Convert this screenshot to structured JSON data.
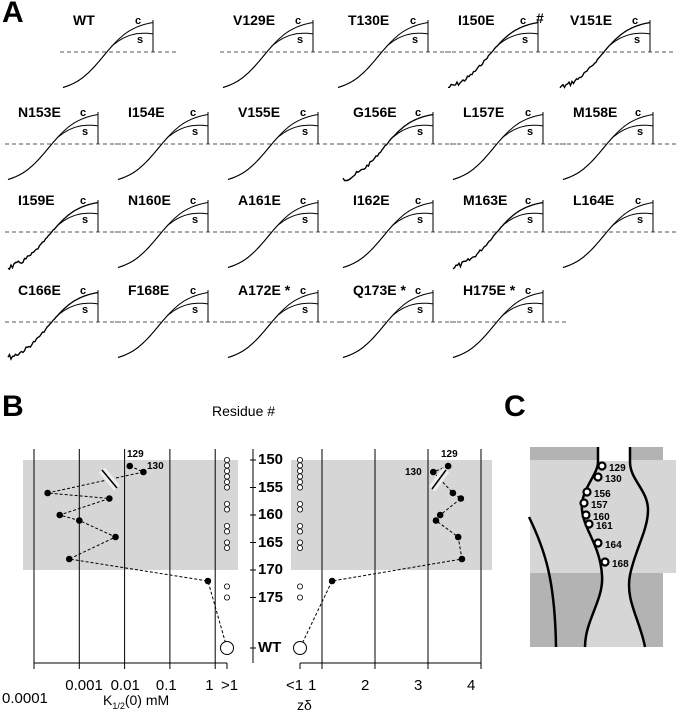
{
  "panel_a": {
    "letter": "A",
    "curve_labels": {
      "c": "c",
      "s": "s"
    },
    "traces": [
      {
        "label": "WT",
        "noisy": false,
        "marker": ""
      },
      {
        "label": "V129E",
        "noisy": false,
        "marker": ""
      },
      {
        "label": "T130E",
        "noisy": false,
        "marker": ""
      },
      {
        "label": "I150E",
        "noisy": true,
        "marker": "#"
      },
      {
        "label": "V151E",
        "noisy": true,
        "marker": ""
      },
      {
        "label": "N153E",
        "noisy": false,
        "marker": ""
      },
      {
        "label": "I154E",
        "noisy": false,
        "marker": ""
      },
      {
        "label": "V155E",
        "noisy": false,
        "marker": ""
      },
      {
        "label": "G156E",
        "noisy": true,
        "marker": ""
      },
      {
        "label": "L157E",
        "noisy": false,
        "marker": ""
      },
      {
        "label": "M158E",
        "noisy": false,
        "marker": ""
      },
      {
        "label": "I159E",
        "noisy": true,
        "marker": ""
      },
      {
        "label": "N160E",
        "noisy": false,
        "marker": ""
      },
      {
        "label": "A161E",
        "noisy": false,
        "marker": ""
      },
      {
        "label": "I162E",
        "noisy": false,
        "marker": ""
      },
      {
        "label": "M163E",
        "noisy": true,
        "marker": ""
      },
      {
        "label": "L164E",
        "noisy": false,
        "marker": ""
      },
      {
        "label": "C166E",
        "noisy": true,
        "marker": ""
      },
      {
        "label": "F168E",
        "noisy": false,
        "marker": ""
      },
      {
        "label": "A172E *",
        "noisy": false,
        "marker": ""
      },
      {
        "label": "Q173E *",
        "noisy": false,
        "marker": ""
      },
      {
        "label": "H175E *",
        "noisy": false,
        "marker": ""
      }
    ]
  },
  "panel_b": {
    "letter": "B",
    "residue_axis_title": "Residue #",
    "residue_ticks": [
      "150",
      "155",
      "160",
      "165",
      "170",
      "175",
      "WT"
    ],
    "point_labels": [
      "129",
      "130"
    ]
  },
  "panel_c": {
    "letter": "C",
    "sites": [
      "129",
      "130",
      "156",
      "157",
      "160",
      "161",
      "164",
      "168"
    ]
  },
  "chart_data": [
    {
      "type": "scatter",
      "xlabel": "K1/2(0)  mM",
      "xlabel_main": "K",
      "xlabel_sub": "1/2",
      "xlabel_rest": "(0)  mM",
      "xscale": "log",
      "xlim": [
        0.0001,
        1
      ],
      "xticks": [
        "0.0001",
        "0.001",
        "0.01",
        "0.1",
        "1",
        ">1"
      ],
      "ylabel": "Residue #",
      "grid": "vertical",
      "shaded_region": [
        150,
        170
      ],
      "series": [
        {
          "residues": [
            129,
            130,
            156,
            157,
            160,
            161,
            164,
            168,
            172
          ],
          "values": [
            0.013,
            0.026,
            0.0002,
            0.0046,
            0.00037,
            0.001,
            0.0063,
            0.0006,
            0.69
          ],
          "marker": "filled"
        },
        {
          "residues": [
            150,
            151,
            152,
            153,
            154,
            155,
            158,
            159,
            162,
            163,
            165,
            166,
            173,
            175
          ],
          "values": ">1",
          "marker": "open"
        },
        {
          "residues": [
            "WT"
          ],
          "values": ">1",
          "marker": "open-large"
        }
      ]
    },
    {
      "type": "scatter",
      "xlabel": "zδ",
      "xlim": [
        1,
        4
      ],
      "xticks": [
        "<1",
        "1",
        "2",
        "3",
        "4"
      ],
      "ylabel": "Residue #",
      "grid": "vertical",
      "shaded_region": [
        150,
        170
      ],
      "series": [
        {
          "residues": [
            129,
            130,
            156,
            157,
            160,
            161,
            164,
            168,
            172
          ],
          "values": [
            3.38,
            3.1,
            3.47,
            3.62,
            3.23,
            3.15,
            3.57,
            3.64,
            1.19
          ],
          "marker": "filled"
        },
        {
          "residues": [
            150,
            151,
            152,
            153,
            154,
            155,
            158,
            159,
            162,
            163,
            165,
            166,
            173,
            175
          ],
          "values": "<1",
          "marker": "open"
        },
        {
          "residues": [
            "WT"
          ],
          "values": "<1",
          "marker": "open-large"
        }
      ]
    }
  ]
}
